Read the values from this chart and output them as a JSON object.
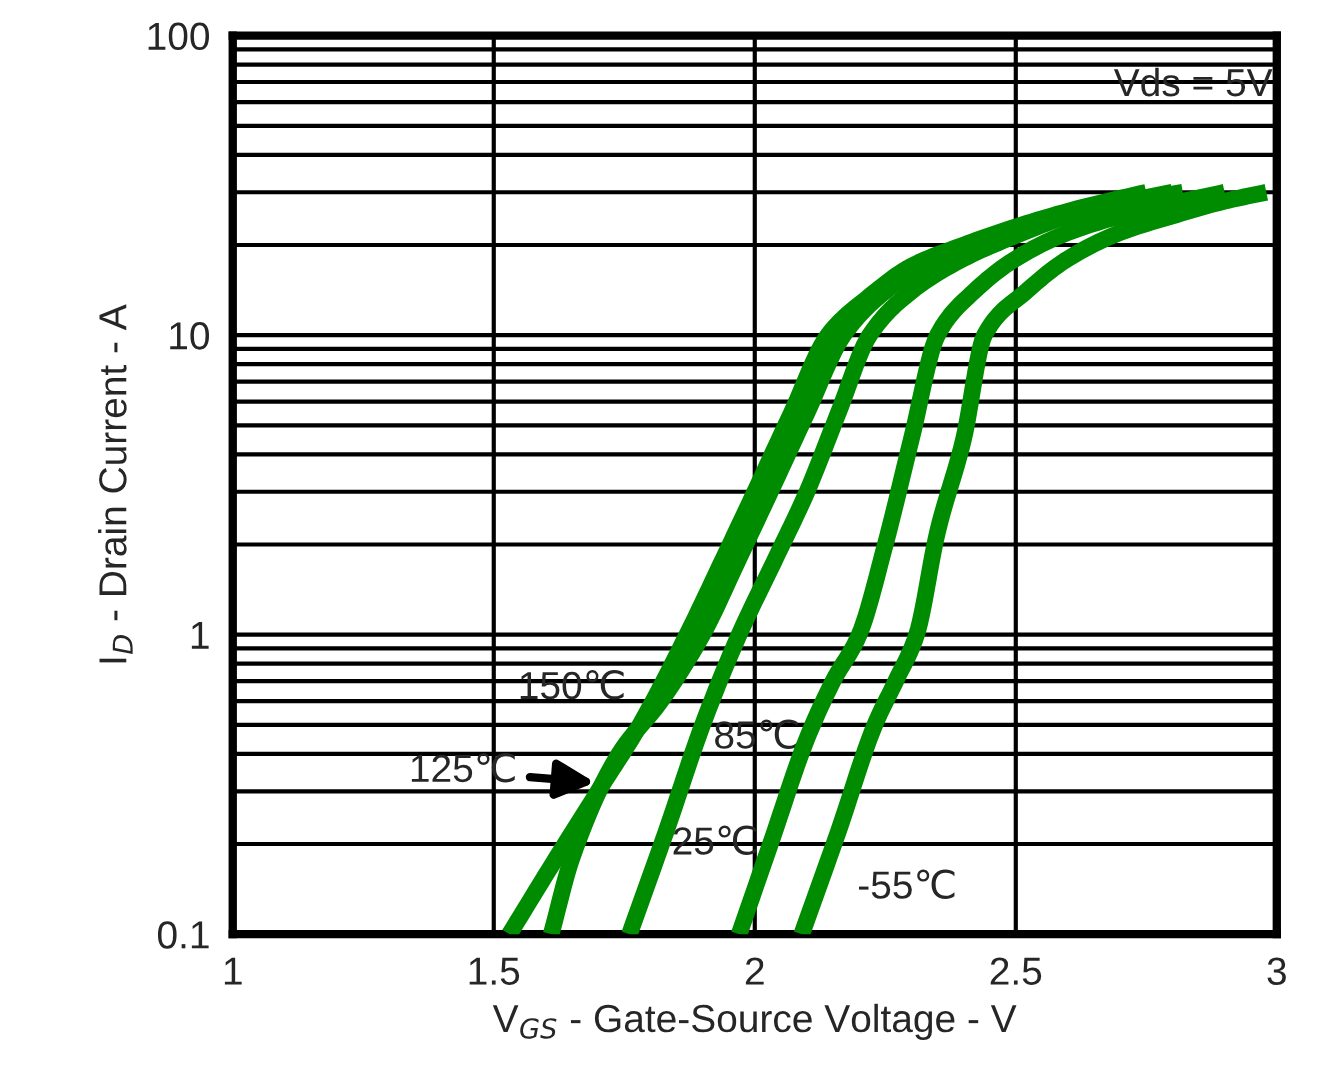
{
  "chart_data": {
    "type": "line",
    "xlabel": "V$_{GS}$ - Gate-Source Voltage - V",
    "ylabel": "I$_{D}$ - Drain Current - A",
    "log": "y",
    "grid": true,
    "legend": false,
    "marker": "none",
    "line_style": "solid",
    "xlim": [
      1,
      3
    ],
    "xticks": [
      1,
      1.5,
      2,
      2.5,
      3
    ],
    "ylim": [
      0.1,
      100
    ],
    "yticks": [
      0.1,
      1,
      10,
      100
    ],
    "series": [
      {
        "color": "#008c00",
        "x": [
          1.53,
          1.62,
          1.7,
          1.78,
          1.87,
          1.94,
          2.0,
          2.07,
          2.14,
          2.22,
          2.3,
          2.4,
          2.5,
          2.62,
          2.75
        ],
        "values": [
          0.1,
          0.18,
          0.3,
          0.5,
          1,
          1.8,
          3,
          5.5,
          10,
          13.5,
          17,
          20,
          23,
          26.5,
          30
        ]
      },
      {
        "color": "#008c00",
        "x": [
          1.61,
          1.65,
          1.74,
          1.82,
          1.9,
          1.97,
          2.03,
          2.1,
          2.17,
          2.25,
          2.35,
          2.45,
          2.55,
          2.67,
          2.8
        ],
        "values": [
          0.1,
          0.18,
          0.4,
          0.6,
          1,
          1.8,
          3,
          5.5,
          10,
          14,
          18,
          21,
          24,
          27,
          30
        ]
      },
      {
        "color": "#008c00",
        "x": [
          1.76,
          1.83,
          1.9,
          1.97,
          2.04,
          2.1,
          2.16,
          2.22,
          2.3,
          2.4,
          2.5,
          2.6,
          2.7,
          2.82
        ],
        "values": [
          0.1,
          0.22,
          0.5,
          1,
          1.8,
          3,
          5.5,
          10,
          14,
          18,
          21.5,
          25,
          27.5,
          30
        ]
      },
      {
        "color": "#008c00",
        "x": [
          1.97,
          2.03,
          2.1,
          2.15,
          2.2,
          2.25,
          2.3,
          2.35,
          2.42,
          2.5,
          2.6,
          2.7,
          2.8,
          2.9
        ],
        "values": [
          0.1,
          0.2,
          0.45,
          0.7,
          1,
          2,
          4.5,
          10,
          14,
          18,
          22,
          25,
          27.5,
          30
        ]
      },
      {
        "color": "#008c00",
        "x": [
          2.09,
          2.16,
          2.23,
          2.27,
          2.31,
          2.35,
          2.4,
          2.44,
          2.52,
          2.6,
          2.7,
          2.8,
          2.9,
          2.98
        ],
        "values": [
          0.1,
          0.22,
          0.5,
          0.7,
          1,
          2.2,
          4.5,
          10,
          14,
          18,
          22,
          25,
          28,
          30
        ]
      }
    ],
    "annotations": [
      "Vds = 5V",
      "150℃",
      {
        "text": "125℃",
        "x": 1.705,
        "y": 0.32
      },
      "85℃",
      "25℃",
      "-55℃"
    ]
  }
}
